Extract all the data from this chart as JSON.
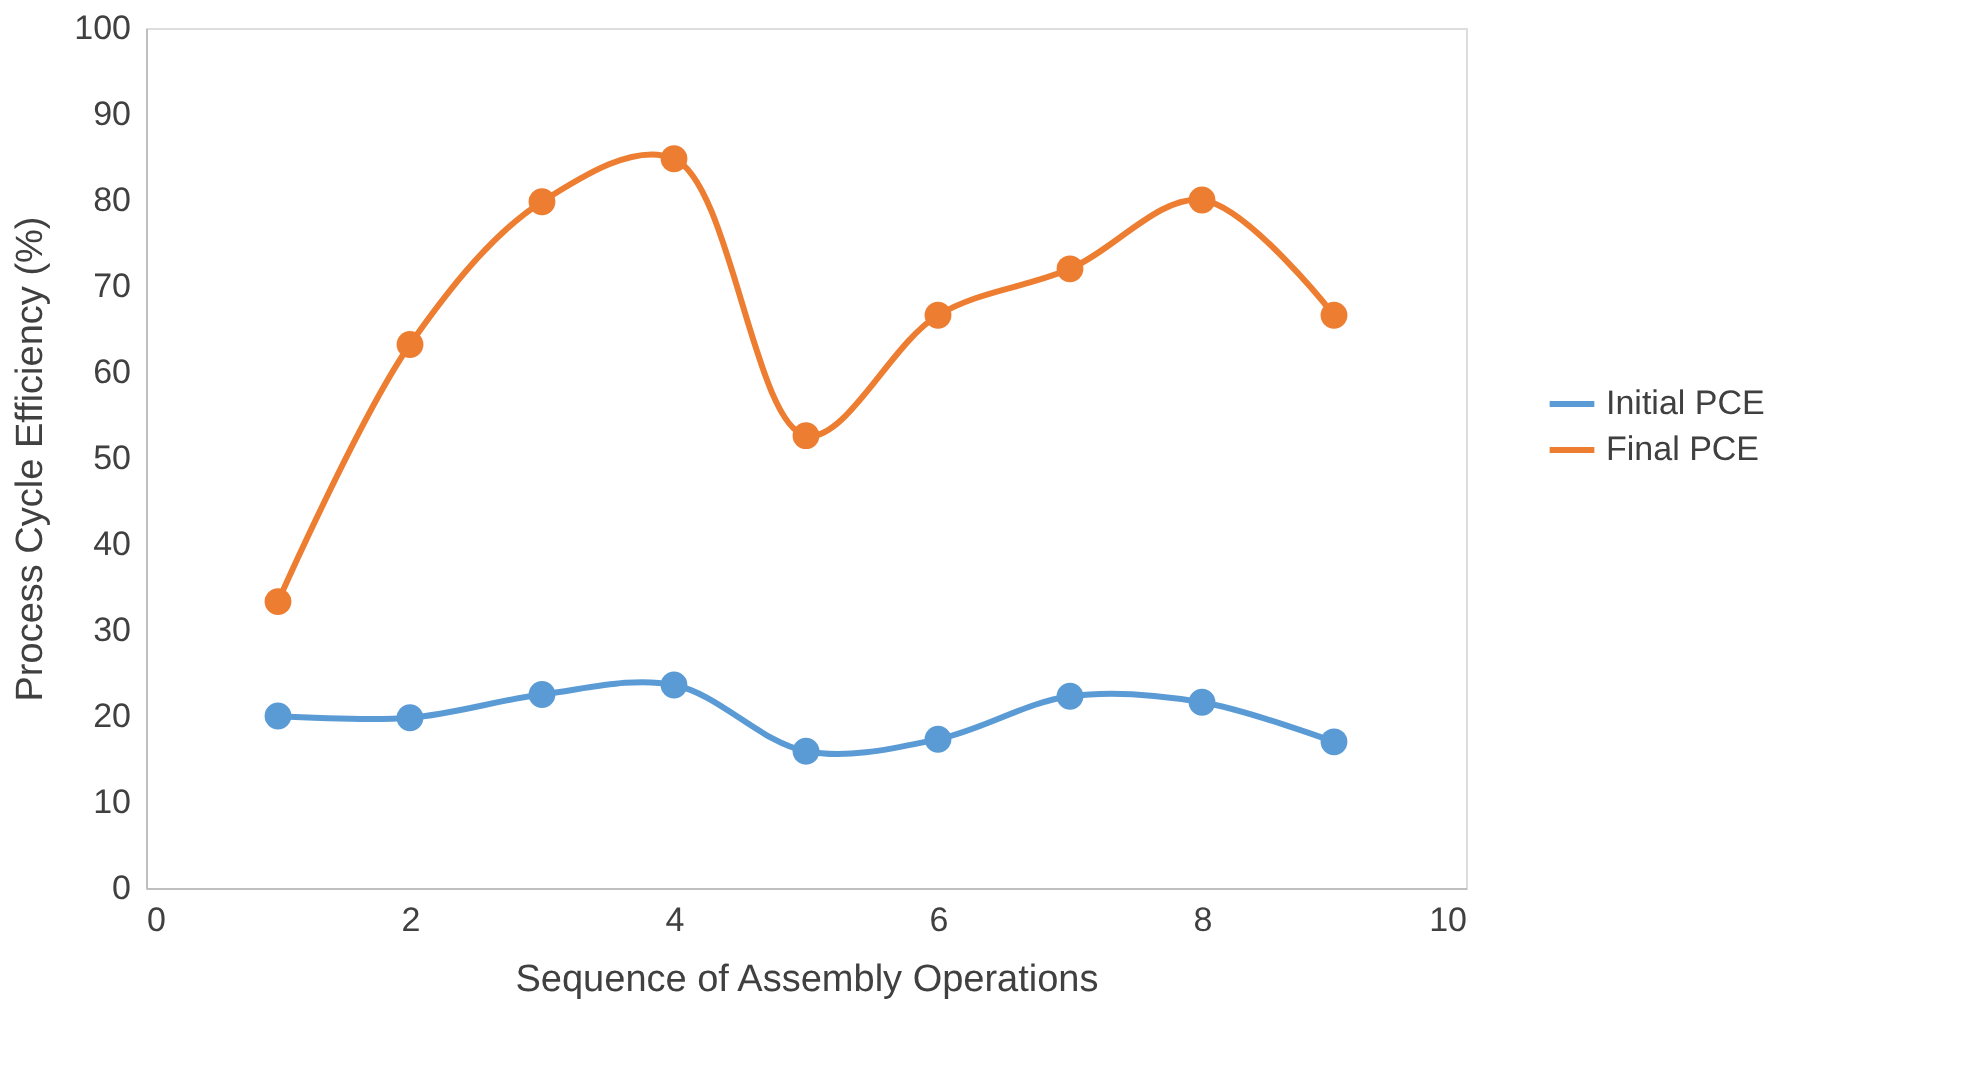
{
  "chart_data": {
    "type": "line",
    "xlabel": "Sequence of Assembly Operations",
    "ylabel": "Process Cycle Efficiency (%)",
    "x": [
      1,
      2,
      3,
      4,
      5,
      6,
      7,
      8,
      9
    ],
    "series": [
      {
        "name": "Initial PCE",
        "color": "#5b9bd5",
        "values": [
          20,
          19.8,
          22.5,
          23.6,
          15.9,
          17.3,
          22.3,
          21.6,
          17.0
        ]
      },
      {
        "name": "Final PCE",
        "color": "#ed7d31",
        "values": [
          33.3,
          63.2,
          79.8,
          84.8,
          52.6,
          66.6,
          72,
          80,
          66.6
        ]
      }
    ],
    "xlim": [
      0,
      10
    ],
    "xticks": [
      0,
      2,
      4,
      6,
      8,
      10
    ],
    "ylim": [
      0,
      100
    ],
    "yticks": [
      0,
      10,
      20,
      30,
      40,
      50,
      60,
      70,
      80,
      90,
      100
    ],
    "grid": false,
    "legend": "right",
    "marker": "circle",
    "line_style": "solid"
  }
}
